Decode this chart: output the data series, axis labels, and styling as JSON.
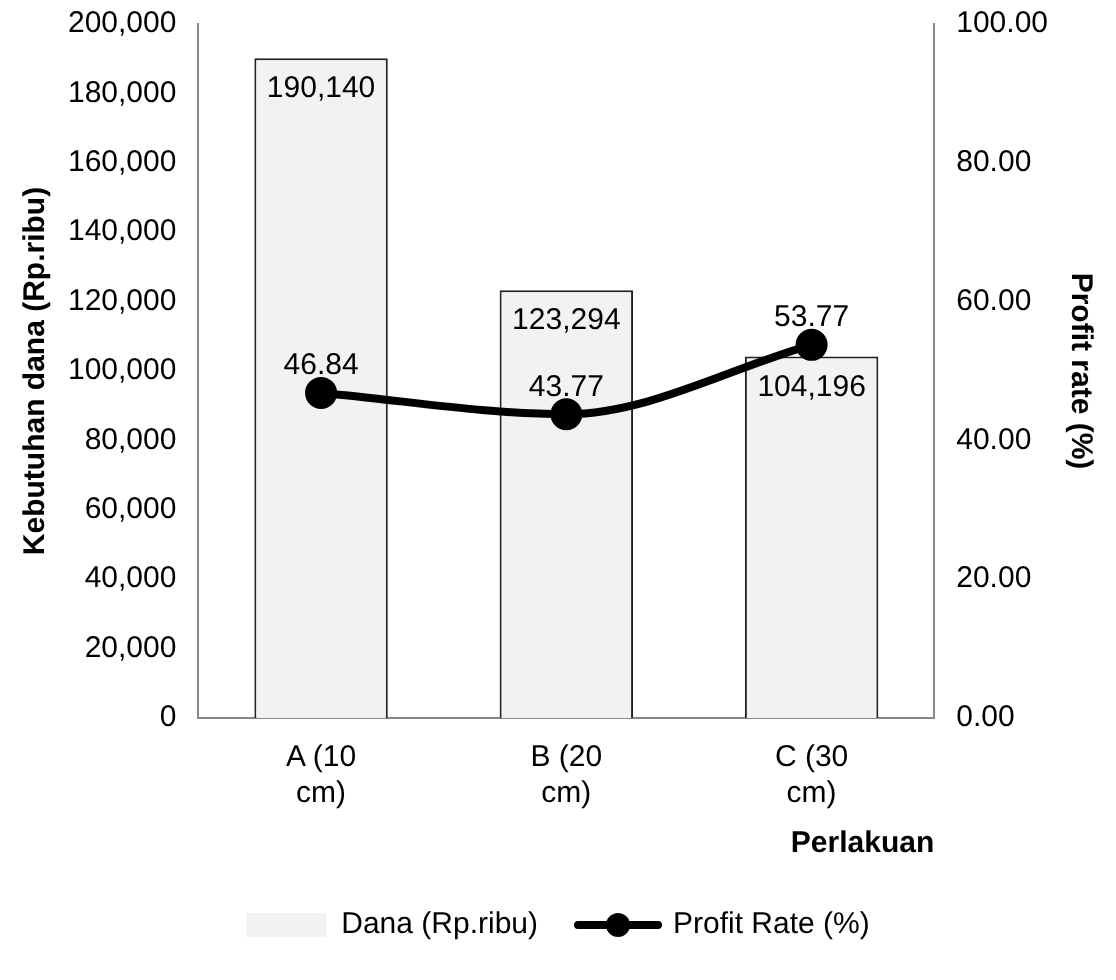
{
  "chart_data": {
    "type": "bar",
    "xlabel": "Perlakuan",
    "ylabel": "Kebutuhan dana (Rp.ribu)",
    "y2label": "Profit rate (%)",
    "categories": [
      "A (10 cm)",
      "B (20 cm)",
      "C (30 cm)"
    ],
    "series": [
      {
        "name": "Dana (Rp.ribu)",
        "color": "#f2f2f2",
        "values": [
          190140,
          123294,
          104196
        ],
        "value_labels": [
          "190,140",
          "123,294",
          "104,196"
        ]
      },
      {
        "name": "Profit Rate (%)",
        "type": "line",
        "axis": "y2",
        "color": "#000000",
        "values": [
          46.84,
          43.77,
          53.77
        ],
        "value_labels": [
          "46.84",
          "43.77",
          "53.77"
        ]
      }
    ],
    "ylim": [
      0,
      200000
    ],
    "yticks": [
      {
        "value": 0,
        "label": "0"
      },
      {
        "value": 20000,
        "label": "20,000"
      },
      {
        "value": 40000,
        "label": "40,000"
      },
      {
        "value": 60000,
        "label": "60,000"
      },
      {
        "value": 80000,
        "label": "80,000"
      },
      {
        "value": 100000,
        "label": "100,000"
      },
      {
        "value": 120000,
        "label": "120,000"
      },
      {
        "value": 140000,
        "label": "140,000"
      },
      {
        "value": 160000,
        "label": "160,000"
      },
      {
        "value": 180000,
        "label": "180,000"
      },
      {
        "value": 200000,
        "label": "200,000"
      }
    ],
    "y2lim": [
      0,
      100
    ],
    "y2ticks": [
      {
        "value": 0,
        "label": "0.00"
      },
      {
        "value": 20,
        "label": "20.00"
      },
      {
        "value": 40,
        "label": "40.00"
      },
      {
        "value": 60,
        "label": "60.00"
      },
      {
        "value": 80,
        "label": "80.00"
      },
      {
        "value": 100,
        "label": "100.00"
      }
    ],
    "grid": false,
    "legend": "bottom",
    "marker": "circle",
    "line_style": "solid"
  }
}
